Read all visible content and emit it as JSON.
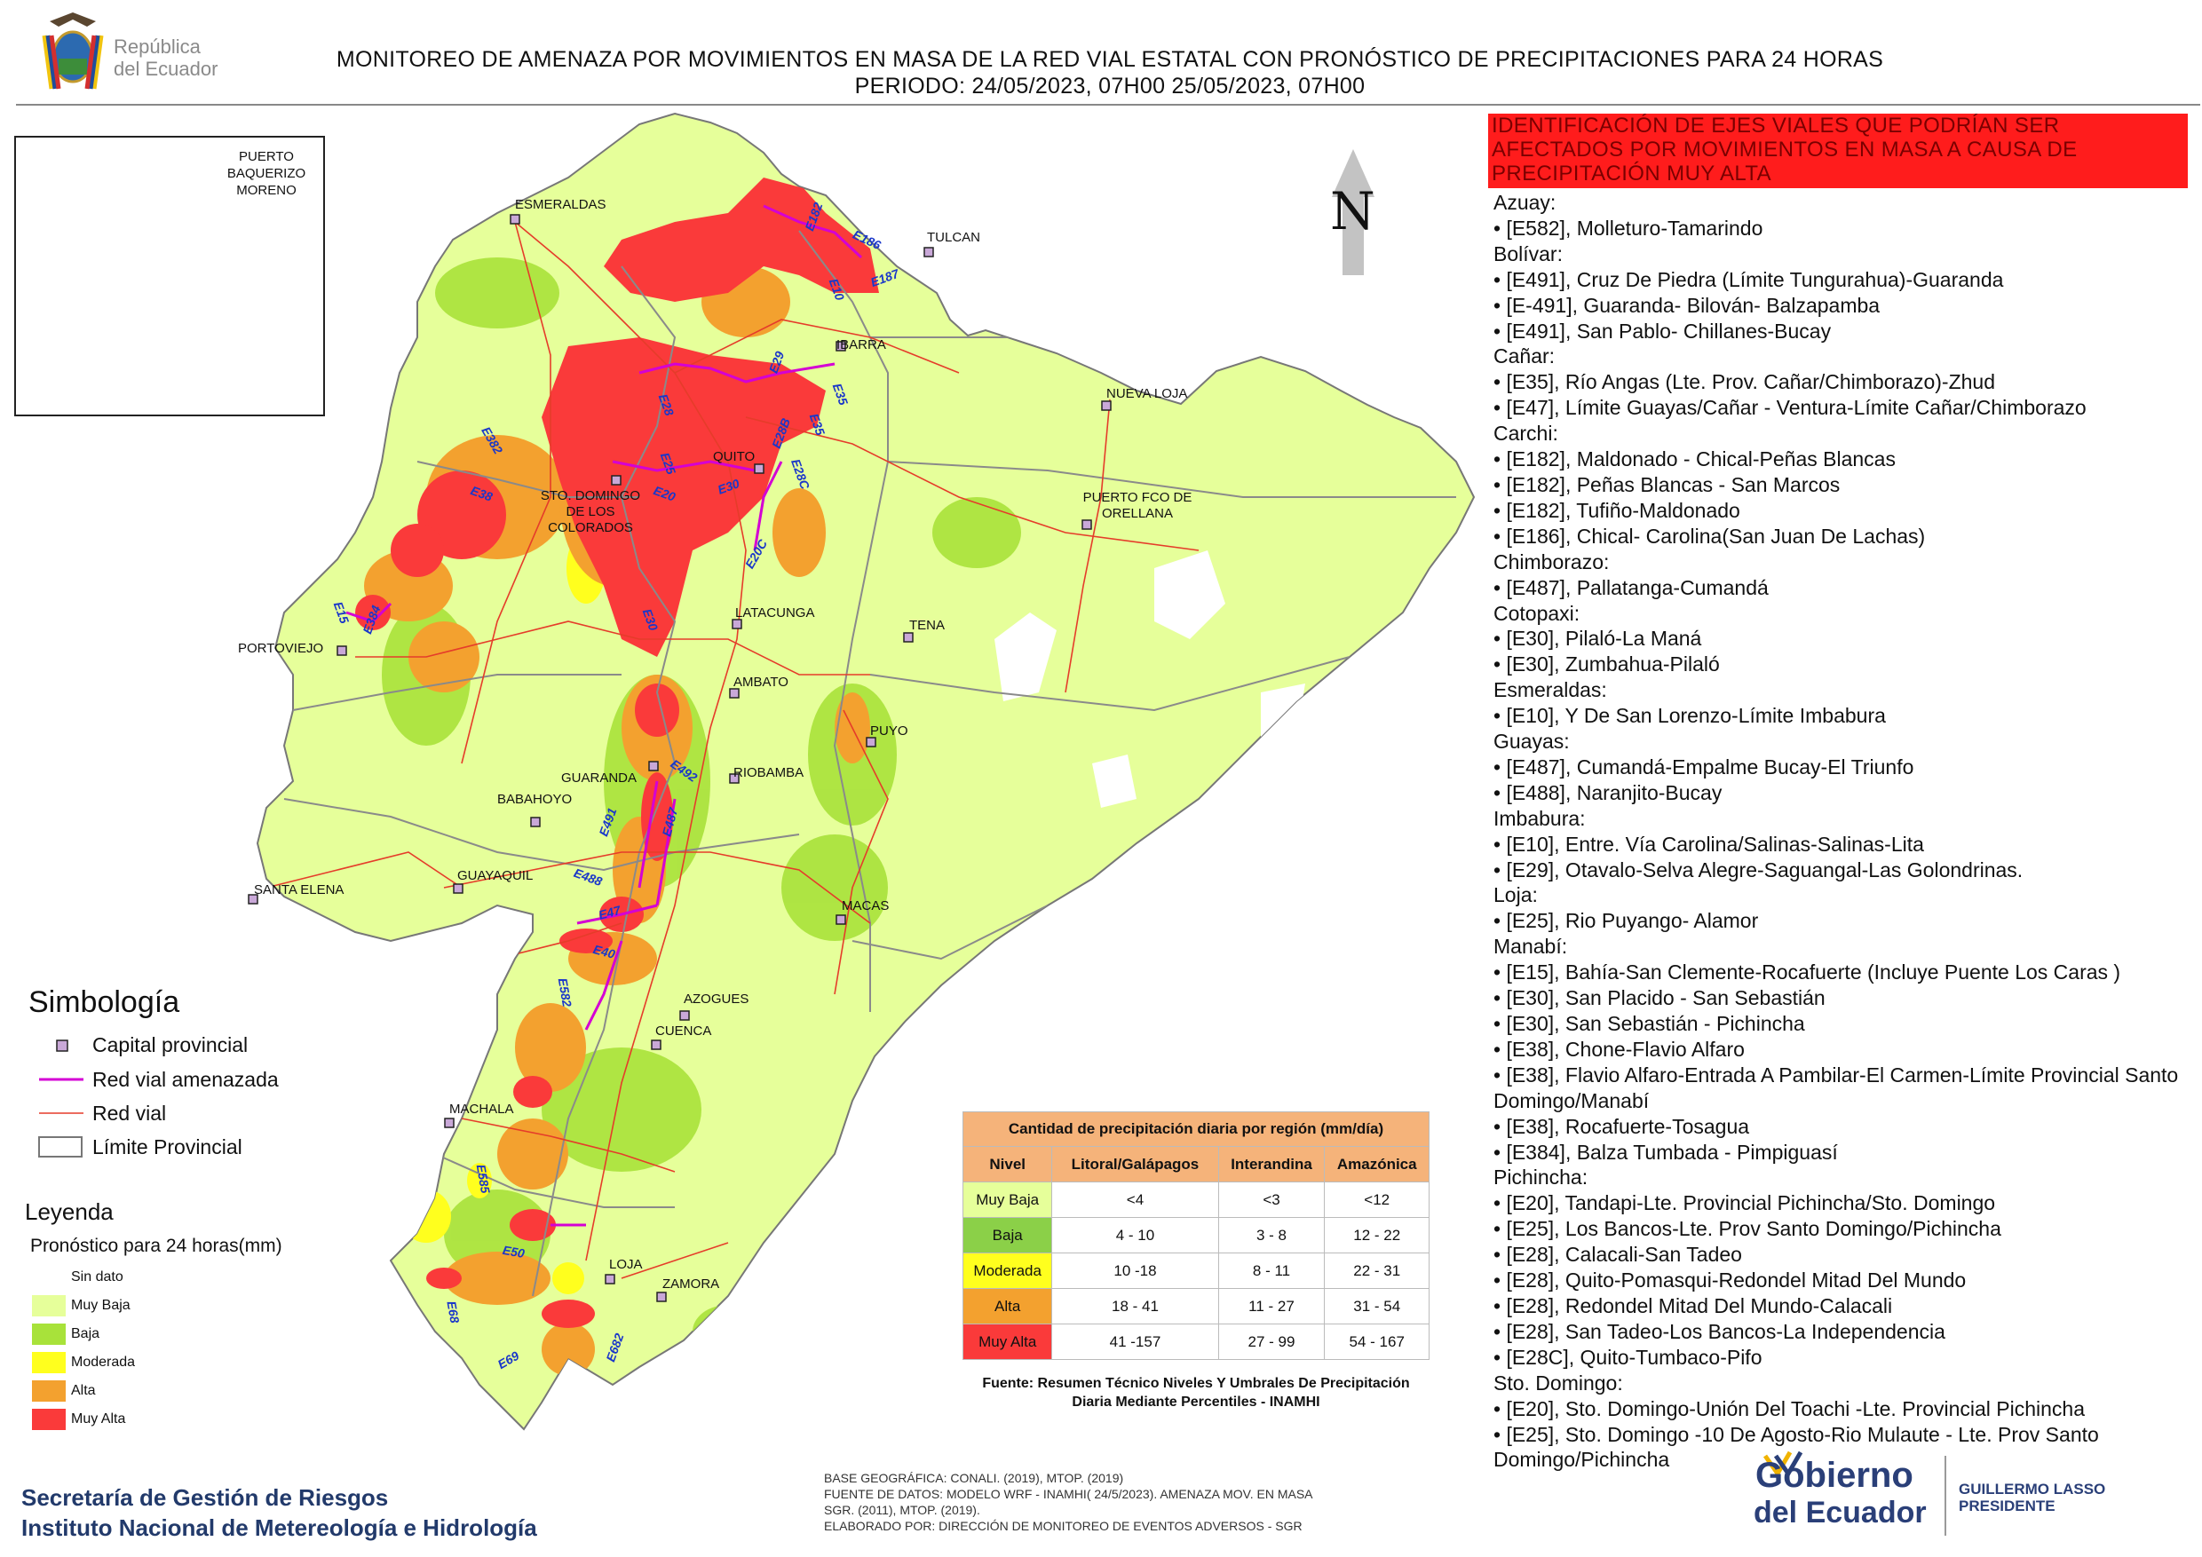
{
  "header": {
    "brand_line1": "República",
    "brand_line2": "del Ecuador",
    "title_line1": "MONITOREO DE AMENAZA POR MOVIMIENTOS EN MASA DE LA RED VIAL  ESTATAL  CON PRONÓSTICO  DE  PRECIPITACIONES PARA 24 HORAS",
    "title_line2": "PERIODO: 24/05/2023, 07H00 25/05/2023, 07H00"
  },
  "map": {
    "north_label": "N",
    "inset_city": "PUERTO BAQUERIZO MORENO",
    "cities": {
      "esmeraldas": "ESMERALDAS",
      "tulcan": "TULCAN",
      "ibarra": "IBARRA",
      "nueva_loja": "NUEVA LOJA",
      "quito": "QUITO",
      "sto_domingo": "STO. DOMINGO DE LOS COLORADOS",
      "puerto_orellana": "PUERTO FCO DE ORELLANA",
      "portoviejo": "PORTOVIEJO",
      "latacunga": "LATACUNGA",
      "tena": "TENA",
      "ambato": "AMBATO",
      "puyo": "PUYO",
      "guaranda": "GUARANDA",
      "riobamba": "RIOBAMBA",
      "babahoyo": "BABAHOYO",
      "guayaquil": "GUAYAQUIL",
      "santa_elena": "SANTA ELENA",
      "macas": "MACAS",
      "azogues": "AZOGUES",
      "cuenca": "CUENCA",
      "machala": "MACHALA",
      "loja": "LOJA",
      "zamora": "ZAMORA"
    },
    "roads": {
      "e182": "E182",
      "e186": "E186",
      "e10": "E10",
      "e187": "E187",
      "e29": "E29",
      "e35": "E35",
      "e28": "E28",
      "e28b": "E28B",
      "e28c": "E28C",
      "e25": "E25",
      "e30": "E30",
      "e20": "E20",
      "e35b": "E35",
      "e382": "E382",
      "e38": "E38",
      "e20c": "E20C",
      "e15": "E15",
      "e384": "E384",
      "e30b": "E30",
      "e492": "E492",
      "e491": "E491",
      "e487": "E487",
      "e488": "E488",
      "e47": "E47",
      "e40": "E40",
      "e582": "E582",
      "e585": "E585",
      "e50": "E50",
      "e68": "E68",
      "e69": "E69",
      "e682": "E682"
    },
    "colors": {
      "sin_dato": "#ffffff",
      "muy_baja": "#e6ff9a",
      "baja": "#a8e23a",
      "moderada": "#ffff1e",
      "alta": "#f3a12f",
      "muy_alta": "#fa3a3a",
      "red_vial": "#e53c2a",
      "red_amenazada": "#d400d4",
      "limite": "#8a8a8a"
    }
  },
  "right_panel": {
    "header": "IDENTIFICACIÓN DE EJES VIALES QUE PODRÍAN SER AFECTADOS POR MOVIMIENTOS EN MASA A CAUSA DE PRECIPITACIÓN MUY ALTA",
    "lines": [
      "Azuay:",
      "• [E582], Molleturo-Tamarindo",
      "Bolívar:",
      "• [E491], Cruz De Piedra (Límite Tungurahua)-Guaranda",
      "• [E-491], Guaranda- Bilován- Balzapamba",
      "• [E491], San Pablo- Chillanes-Bucay",
      "Cañar:",
      "• [E35], Río Angas (Lte. Prov. Cañar/Chimborazo)-Zhud",
      "• [E47], Límite Guayas/Cañar - Ventura-Límite Cañar/Chimborazo",
      "Carchi:",
      "• [E182], Maldonado - Chical-Peñas Blancas",
      "• [E182], Peñas Blancas - San Marcos",
      "• [E182], Tufiño-Maldonado",
      "• [E186], Chical- Carolina(San Juan De Lachas)",
      "Chimborazo:",
      "• [E487], Pallatanga-Cumandá",
      "Cotopaxi:",
      "• [E30], Pilaló-La Maná",
      "• [E30], Zumbahua-Pilaló",
      "Esmeraldas:",
      "• [E10], Y De San Lorenzo-Límite Imbabura",
      "Guayas:",
      "• [E487], Cumandá-Empalme Bucay-El Triunfo",
      "• [E488], Naranjito-Bucay",
      "Imbabura:",
      "• [E10], Entre. Vía Carolina/Salinas-Salinas-Lita",
      "• [E29], Otavalo-Selva Alegre-Saguangal-Las Golondrinas.",
      "Loja:",
      "• [E25], Rio Puyango- Alamor",
      "Manabí:",
      "• [E15], Bahía-San Clemente-Rocafuerte (Incluye Puente Los Caras )",
      "• [E30], San Placido - San Sebastián",
      "• [E30], San Sebastián - Pichincha",
      "• [E38], Chone-Flavio Alfaro",
      "• [E38], Flavio Alfaro-Entrada A Pambilar-El Carmen-Límite Provincial Santo Domingo/Manabí",
      "• [E38], Rocafuerte-Tosagua",
      "• [E384], Balza Tumbada - Pimpiguasí",
      "Pichincha:",
      "• [E20], Tandapi-Lte. Provincial Pichincha/Sto. Domingo",
      "• [E25], Los Bancos-Lte. Prov Santo Domingo/Pichincha",
      "• [E28], Calacali-San Tadeo",
      "• [E28], Quito-Pomasqui-Redondel Mitad Del Mundo",
      "• [E28], Redondel Mitad Del Mundo-Calacali",
      "• [E28], San Tadeo-Los Bancos-La Independencia",
      "• [E28C], Quito-Tumbaco-Pifo",
      "Sto. Domingo:",
      "• [E20], Sto. Domingo-Unión Del Toachi -Lte. Provincial Pichincha",
      "• [E25], Sto. Domingo -10 De Agosto-Rio Mulaute - Lte. Prov Santo Domingo/Pichincha"
    ]
  },
  "legend": {
    "simbologia_title": "Simbología",
    "capital": "Capital provincial",
    "amenazada": "Red vial amenazada",
    "red_vial": "Red vial",
    "limite": "Límite Provincial",
    "leyenda_title": "Leyenda",
    "leyenda_sub": "Pronóstico para 24 horas(mm)",
    "levels": [
      "Sin dato",
      "Muy Baja",
      "Baja",
      "Moderada",
      "Alta",
      "Muy Alta"
    ]
  },
  "table": {
    "caption": "Cantidad de precipitación diaria por región (mm/día)",
    "headers": [
      "Nivel",
      "Litoral/Galápagos",
      "Interandina",
      "Amazónica"
    ],
    "rows": [
      {
        "nivel": "Muy Baja",
        "litoral": "<4",
        "interandina": "<3",
        "amazonica": "<12"
      },
      {
        "nivel": "Baja",
        "litoral": "4 - 10",
        "interandina": "3 - 8",
        "amazonica": "12 - 22"
      },
      {
        "nivel": "Moderada",
        "litoral": "10 -18",
        "interandina": "8 - 11",
        "amazonica": "22 - 31"
      },
      {
        "nivel": "Alta",
        "litoral": "18 - 41",
        "interandina": "11 - 27",
        "amazonica": "31 - 54"
      },
      {
        "nivel": "Muy Alta",
        "litoral": "41 -157",
        "interandina": "27 - 99",
        "amazonica": "54 - 167"
      }
    ],
    "source": "Fuente: Resumen Técnico Niveles Y Umbrales De Precipitación Diaria Mediante Percentiles - INAMHI"
  },
  "footer": {
    "inst1": "Secretaría de Gestión de Riesgos",
    "inst2": "Instituto Nacional de Metereología e Hidrología",
    "meta1": "BASE GEOGRÁFICA: CONALI. (2019), MTOP. (2019)",
    "meta2": "FUENTE DE DATOS: MODELO WRF - INAMHI( 24/5/2023).  AMENAZA MOV. EN MASA",
    "meta3": "SGR. (2011), MTOP. (2019).",
    "meta4": "ELABORADO POR: DIRECCIÓN DE MONITOREO DE EVENTOS ADVERSOS - SGR",
    "gob1": "Gobierno",
    "gob2": "del Ecuador",
    "president_name": "GUILLERMO LASSO",
    "president_title": "PRESIDENTE"
  }
}
